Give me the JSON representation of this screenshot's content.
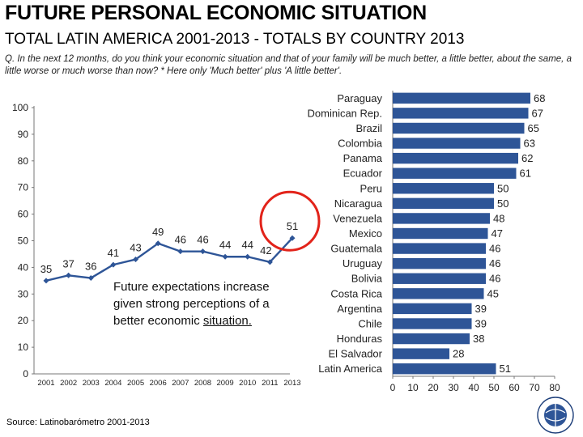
{
  "header": {
    "title": "FUTURE PERSONAL ECONOMIC SITUATION",
    "subtitle": "TOTAL LATIN AMERICA 2001-2013 - TOTALS BY COUNTRY 2013",
    "question": "Q. In the next 12 months, do you think your economic situation and that of your family will be much better, a little better, about the same, a little worse or much worse than now? * Here only 'Much better' plus 'A little better'."
  },
  "annotation": {
    "line1": "Future expectations increase given strong perceptions of a better economic ",
    "line2": "situation."
  },
  "footer": {
    "source": "Source: Latinobarómetro 2001-2013"
  },
  "colors": {
    "series": "#2e5597",
    "bar": "#2e5597",
    "highlight": "#e2231a"
  },
  "chart_data": [
    {
      "type": "line",
      "title": "Total Latin America 2001-2013",
      "x": [
        "2001",
        "2002",
        "2003",
        "2004",
        "2005",
        "2006",
        "2007",
        "2008",
        "2009",
        "2010",
        "2011",
        "2013"
      ],
      "series": [
        {
          "name": "Much better + A little better",
          "values": [
            35,
            37,
            36,
            41,
            43,
            49,
            46,
            46,
            44,
            44,
            42,
            51
          ]
        }
      ],
      "ylim": [
        0,
        100
      ],
      "yticks": [
        0,
        10,
        20,
        30,
        40,
        50,
        60,
        70,
        80,
        90,
        100
      ],
      "highlight_index": 11
    },
    {
      "type": "bar",
      "orientation": "horizontal",
      "title": "Totals by country 2013",
      "categories": [
        "Paraguay",
        "Dominican Rep.",
        "Brazil",
        "Colombia",
        "Panama",
        "Ecuador",
        "Peru",
        "Nicaragua",
        "Venezuela",
        "Mexico",
        "Guatemala",
        "Uruguay",
        "Bolivia",
        "Costa Rica",
        "Argentina",
        "Chile",
        "Honduras",
        "El Salvador",
        "Latin America"
      ],
      "values": [
        68,
        67,
        65,
        63,
        62,
        61,
        50,
        50,
        48,
        47,
        46,
        46,
        46,
        45,
        39,
        39,
        38,
        28,
        51
      ],
      "xlim": [
        0,
        80
      ],
      "xticks": [
        0,
        10,
        20,
        30,
        40,
        50,
        60,
        70,
        80
      ]
    }
  ]
}
